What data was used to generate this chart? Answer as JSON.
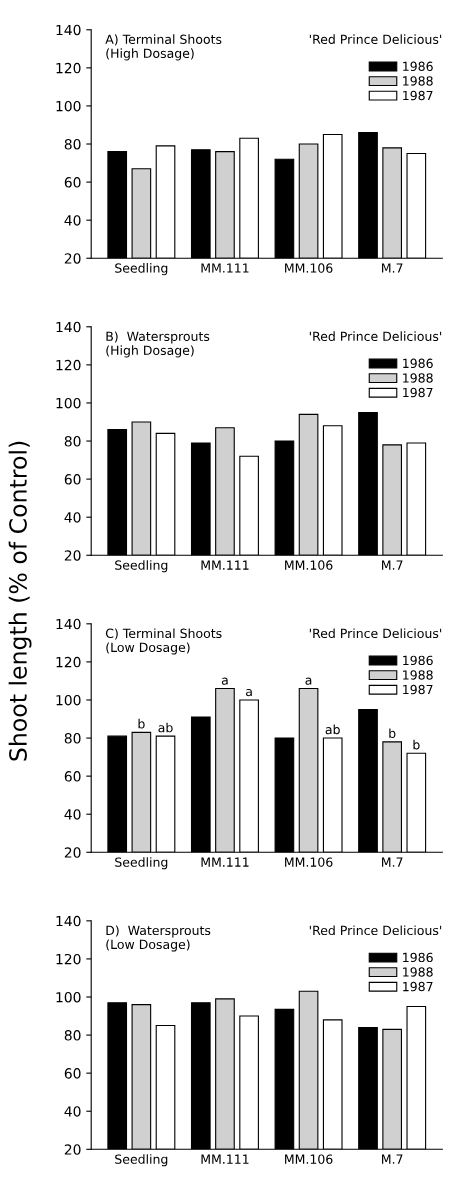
{
  "chart_data": [
    {
      "type": "bar",
      "title": "A) Terminal Shoots\n(High Dosage)",
      "subtitle": "'Red Prince Delicious'",
      "categories": [
        "Seedling",
        "MM.111",
        "MM.106",
        "M.7"
      ],
      "ylim": [
        20,
        140
      ],
      "yticks": [
        20,
        40,
        60,
        80,
        100,
        120,
        140
      ],
      "grid": false,
      "legend": "top right",
      "series": [
        {
          "name": "1986",
          "color": "#000000",
          "values": [
            76,
            77,
            72,
            86
          ]
        },
        {
          "name": "1988",
          "color": "#d0d0d0",
          "values": [
            67,
            76,
            80,
            78
          ]
        },
        {
          "name": "1987",
          "color": "#ffffff",
          "values": [
            79,
            83,
            85,
            75
          ]
        }
      ]
    },
    {
      "type": "bar",
      "title": "B)  Watersprouts\n(High Dosage)",
      "subtitle": "'Red Prince Delicious'",
      "categories": [
        "Seedling",
        "MM.111",
        "MM.106",
        "M.7"
      ],
      "ylim": [
        20,
        140
      ],
      "yticks": [
        20,
        40,
        60,
        80,
        100,
        120,
        140
      ],
      "grid": false,
      "legend": "top right",
      "series": [
        {
          "name": "1986",
          "color": "#000000",
          "values": [
            86,
            79,
            80,
            95
          ]
        },
        {
          "name": "1988",
          "color": "#d0d0d0",
          "values": [
            90,
            87,
            94,
            78
          ]
        },
        {
          "name": "1987",
          "color": "#ffffff",
          "values": [
            84,
            72,
            88,
            79
          ]
        }
      ]
    },
    {
      "type": "bar",
      "title": "C) Terminal Shoots\n(Low Dosage)",
      "subtitle": "'Red Prince Delicious'",
      "ylabel": "Shoot length (% of Control)",
      "categories": [
        "Seedling",
        "MM.111",
        "MM.106",
        "M.7"
      ],
      "ylim": [
        20,
        140
      ],
      "yticks": [
        20,
        40,
        60,
        80,
        100,
        120,
        140
      ],
      "grid": false,
      "legend": "top right",
      "series": [
        {
          "name": "1986",
          "color": "#000000",
          "values": [
            81,
            91,
            80,
            95
          ]
        },
        {
          "name": "1988",
          "color": "#d0d0d0",
          "values": [
            83,
            106,
            106,
            78
          ],
          "value_labels": [
            "b",
            "a",
            "a",
            "b"
          ]
        },
        {
          "name": "1987",
          "color": "#ffffff",
          "values": [
            81,
            100,
            80,
            72
          ],
          "value_labels": [
            "ab",
            "a",
            "ab",
            "b"
          ]
        }
      ]
    },
    {
      "type": "bar",
      "title": "D)  Watersprouts\n(Low Dosage)",
      "subtitle": "'Red Prince Delicious'",
      "categories": [
        "Seedling",
        "MM.111",
        "MM.106",
        "M.7"
      ],
      "ylim": [
        20,
        140
      ],
      "yticks": [
        20,
        40,
        60,
        80,
        100,
        120,
        140
      ],
      "grid": false,
      "legend": "top right",
      "series": [
        {
          "name": "1986",
          "color": "#000000",
          "values": [
            97,
            97,
            93.5,
            84
          ]
        },
        {
          "name": "1988",
          "color": "#d0d0d0",
          "values": [
            96,
            99,
            103,
            83
          ]
        },
        {
          "name": "1987",
          "color": "#ffffff",
          "values": [
            85,
            90,
            88,
            95
          ]
        }
      ]
    }
  ]
}
